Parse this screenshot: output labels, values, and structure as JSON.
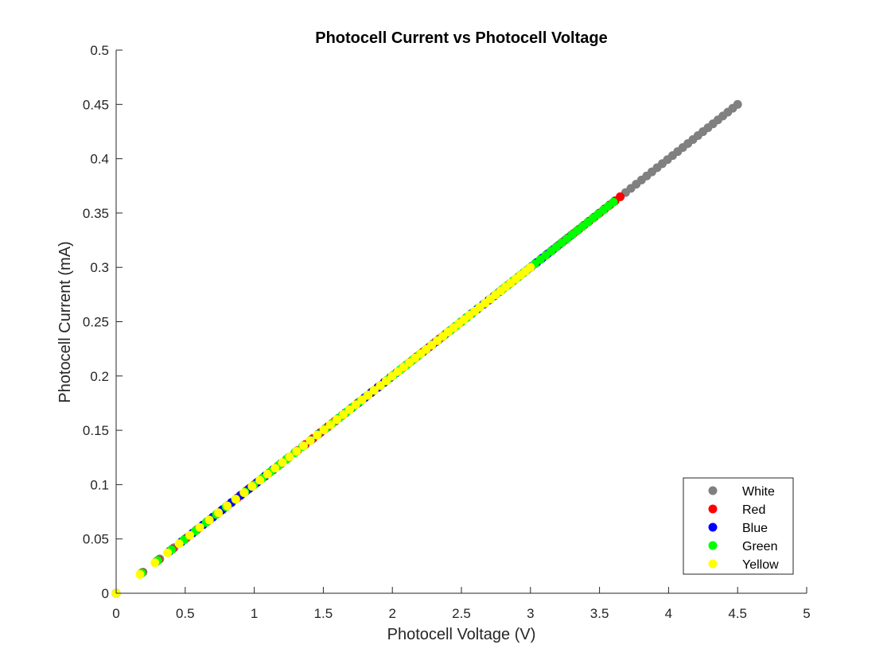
{
  "chart_data": {
    "type": "scatter",
    "title": "Photocell Current vs Photocell Voltage",
    "xlabel": "Photocell Voltage (V)",
    "ylabel": "Photocell Current (mA)",
    "xlim": [
      0,
      5
    ],
    "ylim": [
      0,
      0.5
    ],
    "xticks": [
      "0",
      "0.5",
      "1",
      "1.5",
      "2",
      "2.5",
      "3",
      "3.5",
      "4",
      "4.5",
      "5"
    ],
    "yticks": [
      "0",
      "0.05",
      "0.1",
      "0.15",
      "0.2",
      "0.25",
      "0.3",
      "0.35",
      "0.4",
      "0.45",
      "0.5"
    ],
    "grid": false,
    "legend_position": "bottom-right",
    "slope": 0.1,
    "series": [
      {
        "name": "White",
        "color": "#808080",
        "x_min": 0.0,
        "x_max": 4.5,
        "n": 90
      },
      {
        "name": "Red",
        "color": "#ff0000",
        "x_min": 0.0,
        "x_max": 3.65,
        "n": 70
      },
      {
        "name": "Blue",
        "color": "#0000ff",
        "x_min": 0.0,
        "x_max": 3.3,
        "n": 65
      },
      {
        "name": "Green",
        "color": "#00ff00",
        "x_min": 0.0,
        "x_max": 3.6,
        "n": 70
      },
      {
        "name": "Yellow",
        "color": "#ffff00",
        "x_min": 0.0,
        "x_max": 3.0,
        "n": 60
      }
    ]
  }
}
